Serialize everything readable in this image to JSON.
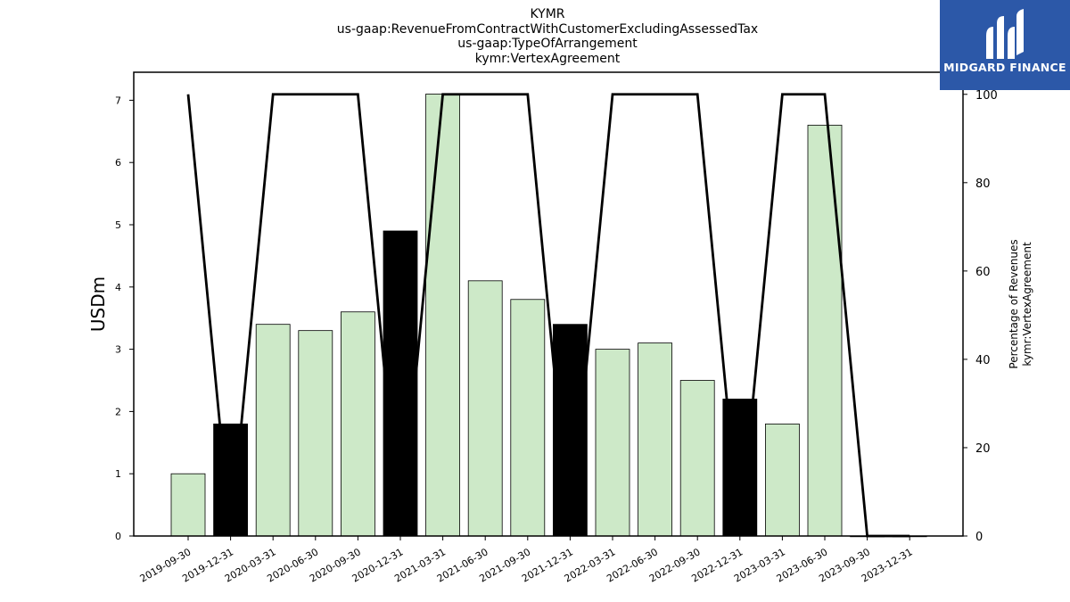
{
  "chart_data": {
    "type": "bar",
    "title_lines": [
      "KYMR",
      "us-gaap:RevenueFromContractWithCustomerExcludingAssessedTax",
      "us-gaap:TypeOfArrangement",
      "kymr:VertexAgreement"
    ],
    "categories": [
      "2019-09-30",
      "2019-12-31",
      "2020-03-31",
      "2020-06-30",
      "2020-09-30",
      "2020-12-31",
      "2021-03-31",
      "2021-06-30",
      "2021-09-30",
      "2021-12-31",
      "2022-03-31",
      "2022-06-30",
      "2022-09-30",
      "2022-12-31",
      "2023-03-31",
      "2023-06-30",
      "2023-09-30",
      "2023-12-31"
    ],
    "series": [
      {
        "values": [
          1.0,
          1.8,
          3.4,
          3.3,
          3.6,
          4.9,
          7.1,
          4.1,
          3.8,
          3.4,
          3.0,
          3.1,
          2.5,
          2.2,
          1.8,
          6.6,
          0.0,
          0.0
        ],
        "highlight": [
          false,
          true,
          false,
          false,
          false,
          true,
          false,
          false,
          false,
          true,
          false,
          false,
          false,
          true,
          false,
          false,
          false,
          false
        ],
        "color": "#cde9c8",
        "highlight_color": "#000000",
        "axis": "left"
      },
      {
        "type": "line",
        "values": [
          100,
          0,
          100,
          100,
          100,
          0,
          100,
          100,
          100,
          0,
          100,
          100,
          100,
          0,
          100,
          100,
          0,
          0
        ],
        "color": "#000000",
        "axis": "right"
      }
    ],
    "ylabel": "USDm",
    "ylim": [
      0,
      7.45
    ],
    "yticks": [
      0,
      1,
      2,
      3,
      4,
      5,
      6,
      7
    ],
    "y2label_lines": [
      "Percentage of Revenues",
      "kymr:VertexAgreement"
    ],
    "y2lim": [
      0,
      105
    ],
    "y2ticks": [
      0,
      20,
      40,
      60,
      80,
      100
    ],
    "grid": false
  },
  "logo": {
    "text": "MIDGARD FINANCE",
    "color": "#2c58a8"
  }
}
